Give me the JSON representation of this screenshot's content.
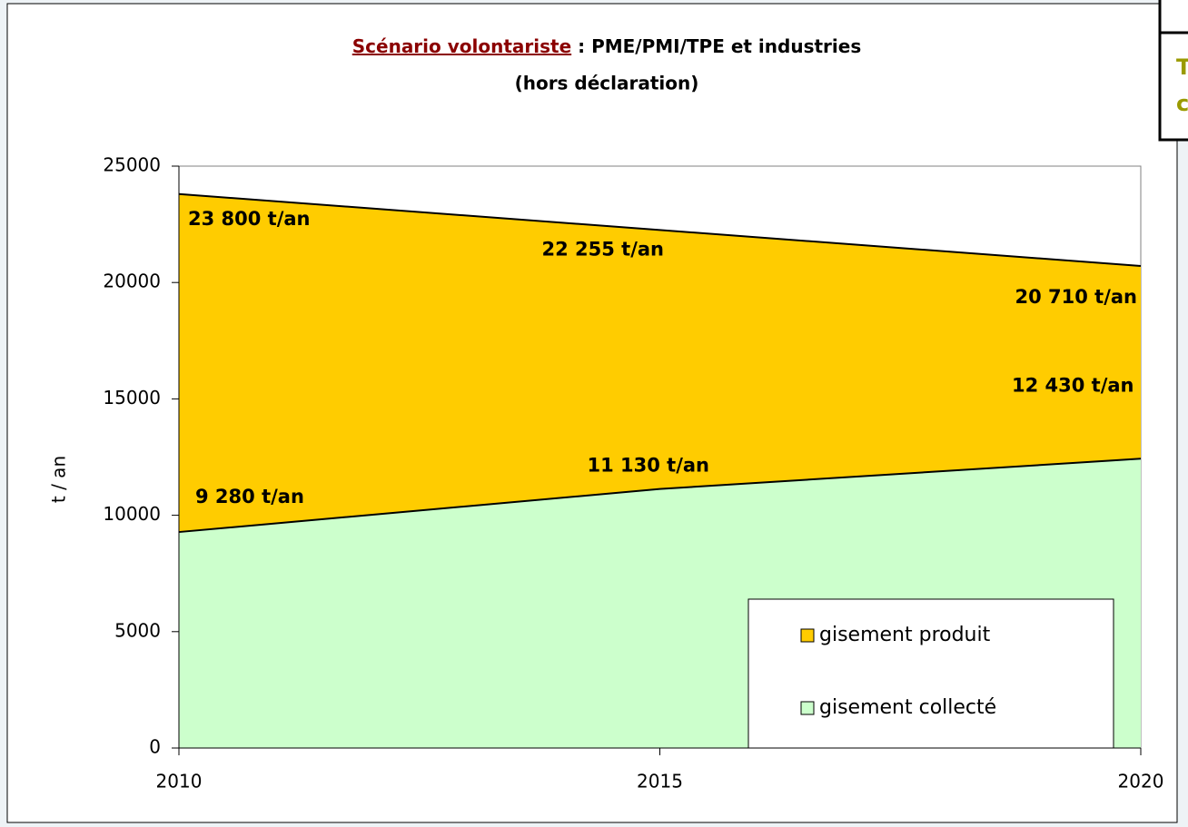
{
  "chart_data": {
    "type": "area",
    "title": {
      "highlight": "Scénario volontariste",
      "rest": " : PME/PMI/TPE et industries",
      "line2": "(hors déclaration)"
    },
    "y_label": "t / an",
    "x": [
      2010,
      2015,
      2020
    ],
    "xlim": [
      2010,
      2020
    ],
    "xticks": [
      2010,
      2015,
      2020
    ],
    "ylim": [
      0,
      25000
    ],
    "yticks": [
      0,
      5000,
      10000,
      15000,
      20000,
      25000
    ],
    "series": [
      {
        "name": "gisement produit",
        "color": "#ffcc00",
        "values": [
          23800,
          22255,
          20710
        ],
        "value_labels": [
          "23 800 t/an",
          "22 255 t/an",
          "20 710 t/an"
        ]
      },
      {
        "name": "gisement collecté",
        "color": "#ccffcc",
        "values": [
          9280,
          11130,
          12430
        ],
        "value_labels": [
          "9 280 t/an",
          "11 130 t/an",
          "12 430 t/an"
        ]
      }
    ],
    "legend": "bottom-right"
  },
  "side_box": {
    "line1": "T",
    "line2": "c"
  }
}
